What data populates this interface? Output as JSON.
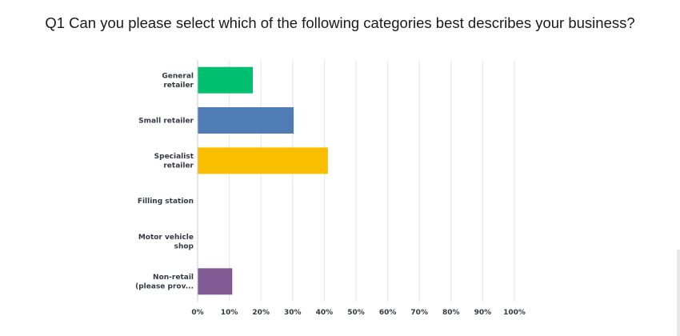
{
  "title": "Q1 Can you please select which of the following categories best describes your business?",
  "chart_data": {
    "type": "bar",
    "orientation": "horizontal",
    "title": "Q1 Can you please select which of the following categories best describes your business?",
    "categories": [
      [
        "General",
        "retailer"
      ],
      [
        "Small retailer"
      ],
      [
        "Specialist",
        "retailer"
      ],
      [
        "Filling station"
      ],
      [
        "Motor vehicle",
        "shop"
      ],
      [
        "Non-retail",
        "(please prov..."
      ]
    ],
    "values": [
      17.3,
      30.2,
      41.0,
      0,
      0,
      10.8
    ],
    "colors": [
      "#00bf6f",
      "#507cb6",
      "#f9be00",
      "#6bc8cd",
      "#ff8b4f",
      "#7f5a93"
    ],
    "xlim": [
      0,
      100
    ],
    "xticks": [
      "0%",
      "10%",
      "20%",
      "30%",
      "40%",
      "50%",
      "60%",
      "70%",
      "80%",
      "90%",
      "100%"
    ],
    "grid": true,
    "xlabel": "",
    "ylabel": ""
  }
}
